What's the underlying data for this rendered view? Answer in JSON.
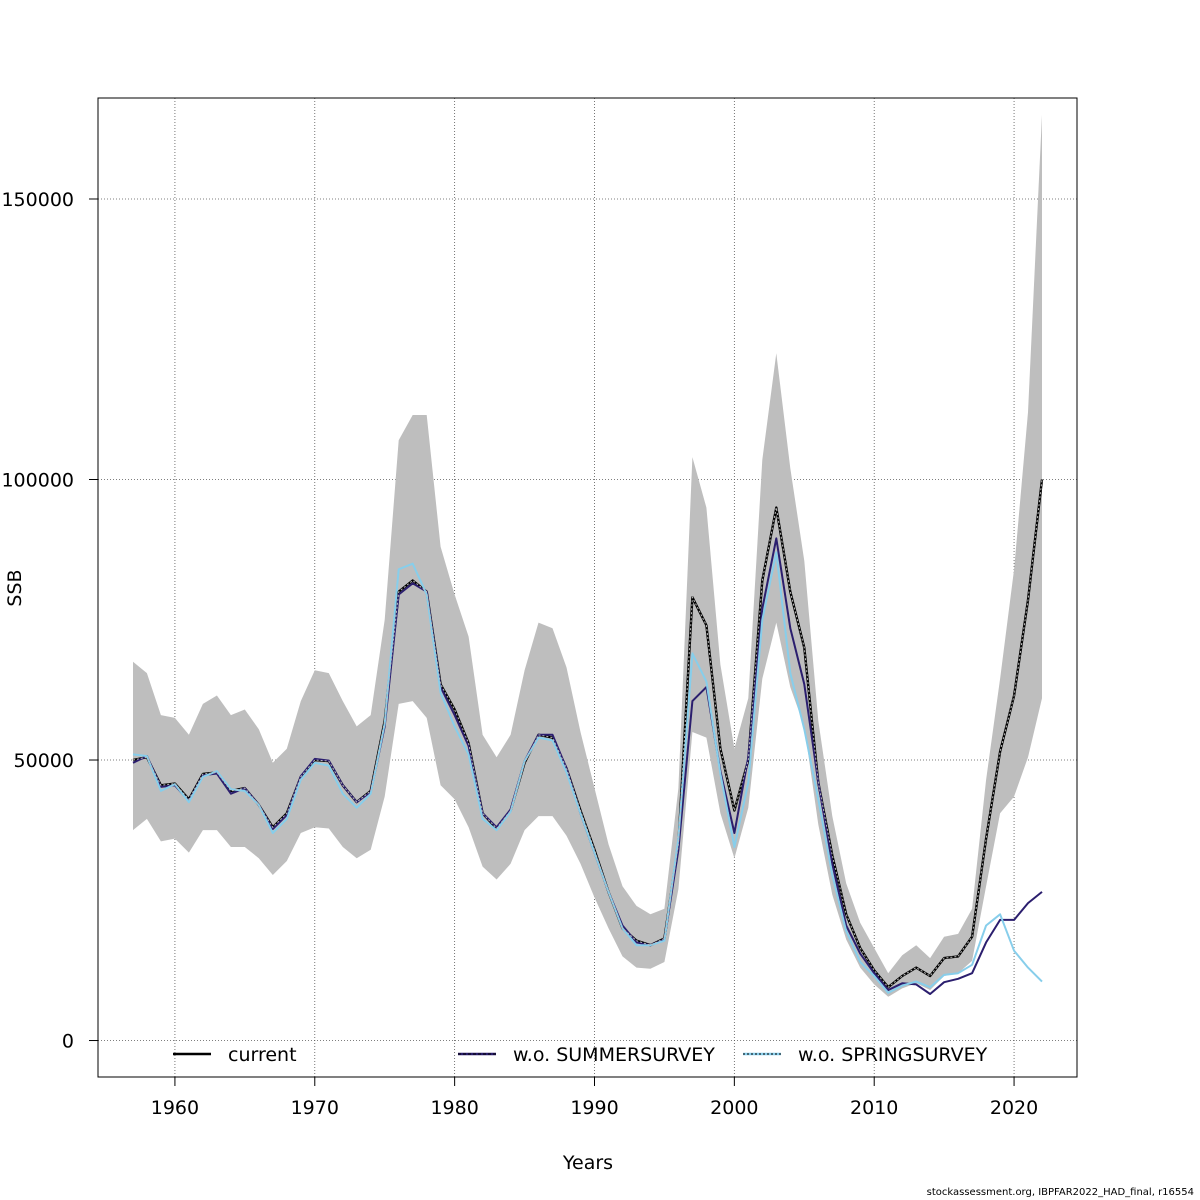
{
  "chart_data": {
    "type": "line",
    "xlabel": "Years",
    "ylabel": "SSB",
    "xlim": [
      1954.5,
      2024.5
    ],
    "ylim": [
      -6500,
      168000
    ],
    "x_ticks": [
      1960,
      1970,
      1980,
      1990,
      2000,
      2010,
      2020
    ],
    "y_ticks": [
      0,
      50000,
      100000,
      150000
    ],
    "grid": true,
    "legend_position": "bottom",
    "colors": {
      "band": "#bebebe",
      "current": "#000000",
      "summer": "#2b1e6e",
      "spring": "#87ceeb"
    },
    "x": [
      1957,
      1958,
      1959,
      1960,
      1961,
      1962,
      1963,
      1964,
      1965,
      1966,
      1967,
      1968,
      1969,
      1970,
      1971,
      1972,
      1973,
      1974,
      1975,
      1976,
      1977,
      1978,
      1979,
      1980,
      1981,
      1982,
      1983,
      1984,
      1985,
      1986,
      1987,
      1988,
      1989,
      1990,
      1991,
      1992,
      1993,
      1994,
      1995,
      1996,
      1997,
      1998,
      1999,
      2000,
      2001,
      2002,
      2003,
      2004,
      2005,
      2006,
      2007,
      2008,
      2009,
      2010,
      2011,
      2012,
      2013,
      2014,
      2015,
      2016,
      2017,
      2018,
      2019,
      2020,
      2021,
      2022
    ],
    "series": [
      {
        "name": "current",
        "values": [
          50000,
          50500,
          45500,
          45800,
          43000,
          47500,
          47800,
          44500,
          45000,
          42000,
          38000,
          40500,
          47000,
          50000,
          49800,
          45500,
          42500,
          44500,
          57000,
          80000,
          82000,
          80000,
          63500,
          59000,
          53000,
          40500,
          37800,
          41000,
          49500,
          54500,
          54000,
          48500,
          41000,
          34000,
          26500,
          20000,
          17800,
          17000,
          18200,
          35000,
          79000,
          74000,
          52000,
          41000,
          50000,
          82000,
          95000,
          80000,
          70000,
          46000,
          33000,
          22500,
          16500,
          12500,
          9500,
          11500,
          13000,
          11500,
          14700,
          15000,
          18500,
          36000,
          51500,
          61500,
          78500,
          100000
        ]
      },
      {
        "name": "w.o. SUMMERSURVEY",
        "values": [
          49500,
          50700,
          45200,
          45500,
          42700,
          47300,
          47600,
          44000,
          45000,
          42000,
          37700,
          40200,
          47100,
          50200,
          49900,
          45500,
          42500,
          44300,
          56000,
          79500,
          81500,
          80000,
          63000,
          58000,
          52500,
          40500,
          38000,
          41200,
          49800,
          54500,
          54500,
          48500,
          40500,
          33500,
          26500,
          20500,
          17500,
          17000,
          18000,
          34000,
          60500,
          63000,
          48000,
          37000,
          50500,
          77000,
          89500,
          73500,
          63500,
          46000,
          31500,
          20500,
          15500,
          12000,
          9000,
          10200,
          10000,
          8300,
          10400,
          11000,
          12000,
          17500,
          21500,
          21500,
          24500,
          26500
        ]
      },
      {
        "name": "w.o. SPRINGSURVEY",
        "values": [
          51000,
          50700,
          44500,
          45700,
          42500,
          47000,
          48000,
          44800,
          44500,
          42000,
          37000,
          39500,
          46500,
          49500,
          49000,
          44000,
          41500,
          44000,
          56500,
          84000,
          85000,
          79500,
          62000,
          56000,
          51000,
          39500,
          37500,
          40800,
          49800,
          54000,
          53500,
          47800,
          40500,
          33500,
          26500,
          20000,
          17000,
          17000,
          17800,
          36000,
          69000,
          64000,
          47500,
          34500,
          46000,
          75000,
          87000,
          65500,
          55500,
          43000,
          29500,
          19500,
          14000,
          11500,
          8500,
          9800,
          10500,
          9500,
          11700,
          12000,
          13500,
          20500,
          22500,
          16000,
          13000,
          10500
        ]
      }
    ],
    "band": {
      "lower": [
        37500,
        39500,
        35500,
        36000,
        33500,
        37500,
        37500,
        34500,
        34500,
        32500,
        29500,
        32000,
        37000,
        38000,
        37800,
        34500,
        32500,
        34000,
        43500,
        60000,
        60500,
        57500,
        45500,
        43000,
        38000,
        31000,
        28700,
        31500,
        37500,
        40000,
        40000,
        36500,
        31500,
        25500,
        20000,
        15000,
        13000,
        12800,
        14000,
        27000,
        55000,
        54000,
        40500,
        32500,
        41500,
        64500,
        74500,
        63000,
        56000,
        38500,
        26000,
        18000,
        13000,
        10000,
        7800,
        9300,
        10200,
        9000,
        11500,
        12000,
        14200,
        27500,
        40500,
        43500,
        50500,
        61000
      ],
      "upper": [
        67500,
        65500,
        58000,
        57500,
        54500,
        60000,
        61500,
        58000,
        59000,
        55500,
        49500,
        52000,
        60500,
        66000,
        65500,
        60500,
        56000,
        58000,
        75000,
        107000,
        111500,
        111500,
        88000,
        79500,
        72000,
        54500,
        50500,
        54500,
        66000,
        74500,
        73500,
        66500,
        55000,
        45000,
        35000,
        27500,
        24000,
        22500,
        23500,
        45000,
        104000,
        95000,
        67000,
        52000,
        61000,
        103500,
        122500,
        102000,
        85500,
        57000,
        40000,
        28000,
        21000,
        16500,
        12000,
        15200,
        17000,
        14700,
        18500,
        19000,
        23500,
        46500,
        64500,
        84000,
        112000,
        165000
      ]
    },
    "legend": [
      {
        "label": "current",
        "series": 0
      },
      {
        "label": "w.o. SUMMERSURVEY",
        "series": 1
      },
      {
        "label": "w.o. SPRINGSURVEY",
        "series": 2
      }
    ]
  },
  "footer": {
    "credit": "stockassessment.org, IBPFAR2022_HAD_final, r16554"
  }
}
